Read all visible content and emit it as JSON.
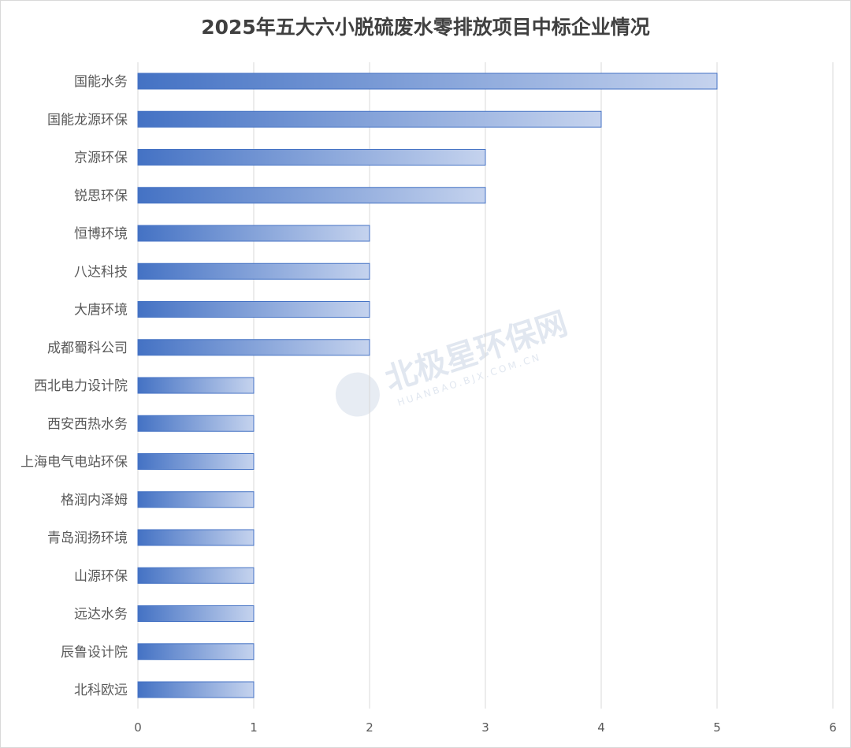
{
  "watermark": {
    "brand_text": "北极星环保网",
    "domain_text": "HUANBAO.BJX.COM.CN"
  },
  "chart_data": {
    "type": "bar",
    "orientation": "horizontal",
    "title": "2025年五大六小脱硫废水零排放项目中标企业情况",
    "categories": [
      "国能水务",
      "国能龙源环保",
      "京源环保",
      "锐思环保",
      "恒博环境",
      "八达科技",
      "大唐环境",
      "成都蜀科公司",
      "西北电力设计院",
      "西安西热水务",
      "上海电气电站环保",
      "格润内泽姆",
      "青岛润扬环境",
      "山源环保",
      "远达水务",
      "辰鲁设计院",
      "北科欧远"
    ],
    "values": [
      5,
      4,
      3,
      3,
      2,
      2,
      2,
      2,
      1,
      1,
      1,
      1,
      1,
      1,
      1,
      1,
      1
    ],
    "xlabel": "",
    "ylabel": "",
    "xlim": [
      0,
      6
    ],
    "x_ticks": [
      "0",
      "1",
      "2",
      "3",
      "4",
      "5",
      "6"
    ],
    "grid": "vertical",
    "legend": "none",
    "colors": {
      "bar_start": "#4472c4",
      "bar_end": "#c5d3ee",
      "bar_border": "#4472c4"
    }
  }
}
